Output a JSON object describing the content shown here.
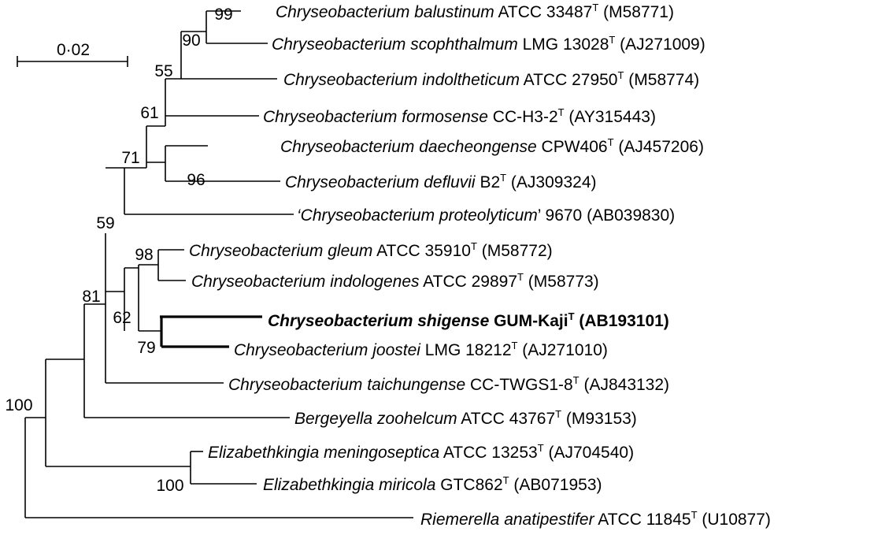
{
  "scale": {
    "label": "0·02"
  },
  "taxa": [
    {
      "id": "balustinum",
      "genus": "Chryseobacterium",
      "species": "balustinum",
      "strain": "ATCC 33487",
      "type": true,
      "accession": "(M58771)",
      "quoted": false,
      "highlight": false
    },
    {
      "id": "scophthalmum",
      "genus": "Chryseobacterium",
      "species": "scophthalmum",
      "strain": "LMG 13028",
      "type": true,
      "accession": "(AJ271009)",
      "quoted": false,
      "highlight": false
    },
    {
      "id": "indoltheticum",
      "genus": "Chryseobacterium",
      "species": "indoltheticum",
      "strain": "ATCC 27950",
      "type": true,
      "accession": "(M58774)",
      "quoted": false,
      "highlight": false
    },
    {
      "id": "formosense",
      "genus": "Chryseobacterium",
      "species": "formosense",
      "strain": "CC-H3-2",
      "type": true,
      "accession": "(AY315443)",
      "quoted": false,
      "highlight": false
    },
    {
      "id": "daecheongense",
      "genus": "Chryseobacterium",
      "species": "daecheongense",
      "strain": "CPW406",
      "type": true,
      "accession": "(AJ457206)",
      "quoted": false,
      "highlight": false
    },
    {
      "id": "defluvii",
      "genus": "Chryseobacterium",
      "species": "defluvii",
      "strain": "B2",
      "type": true,
      "accession": "(AJ309324)",
      "quoted": false,
      "highlight": false
    },
    {
      "id": "proteolyticum",
      "genus": "Chryseobacterium",
      "species": "proteolyticum",
      "strain": "9670",
      "type": false,
      "accession": "(AB039830)",
      "quoted": true,
      "highlight": false
    },
    {
      "id": "gleum",
      "genus": "Chryseobacterium",
      "species": "gleum",
      "strain": "ATCC 35910",
      "type": true,
      "accession": "(M58772)",
      "quoted": false,
      "highlight": false
    },
    {
      "id": "indologenes",
      "genus": "Chryseobacterium",
      "species": "indologenes",
      "strain": "ATCC 29897",
      "type": true,
      "accession": "(M58773)",
      "quoted": false,
      "highlight": false
    },
    {
      "id": "shigense",
      "genus": "Chryseobacterium",
      "species": "shigense",
      "strain": "GUM-Kaji",
      "type": true,
      "accession": "(AB193101)",
      "quoted": false,
      "highlight": true
    },
    {
      "id": "joostei",
      "genus": "Chryseobacterium",
      "species": "joostei",
      "strain": "LMG 18212",
      "type": true,
      "accession": "(AJ271010)",
      "quoted": false,
      "highlight": false
    },
    {
      "id": "taichungense",
      "genus": "Chryseobacterium",
      "species": "taichungense",
      "strain": "CC-TWGS1-8",
      "type": true,
      "accession": "(AJ843132)",
      "quoted": false,
      "highlight": false
    },
    {
      "id": "zoohelcum",
      "genus": "Bergeyella",
      "species": "zoohelcum",
      "strain": "ATCC 43767",
      "type": true,
      "accession": "(M93153)",
      "quoted": false,
      "highlight": false
    },
    {
      "id": "meningoseptica",
      "genus": "Elizabethkingia",
      "species": "meningoseptica",
      "strain": "ATCC 13253",
      "type": true,
      "accession": "(AJ704540)",
      "quoted": false,
      "highlight": false
    },
    {
      "id": "miricola",
      "genus": "Elizabethkingia",
      "species": "miricola",
      "strain": "GTC862",
      "type": true,
      "accession": "(AB071953)",
      "quoted": false,
      "highlight": false
    },
    {
      "id": "anatipestifer",
      "genus": "Riemerella",
      "species": "anatipestifer",
      "strain": "ATCC 11845",
      "type": true,
      "accession": "(U10877)",
      "quoted": false,
      "highlight": false
    }
  ],
  "type_mark": "T",
  "bootstrap": {
    "n99": "99",
    "n90": "90",
    "n55": "55",
    "n61": "61",
    "n96": "96",
    "n71": "71",
    "n59": "59",
    "n98": "98",
    "n81": "81",
    "n62": "62",
    "n79": "79",
    "n100a": "100",
    "n100b": "100"
  }
}
